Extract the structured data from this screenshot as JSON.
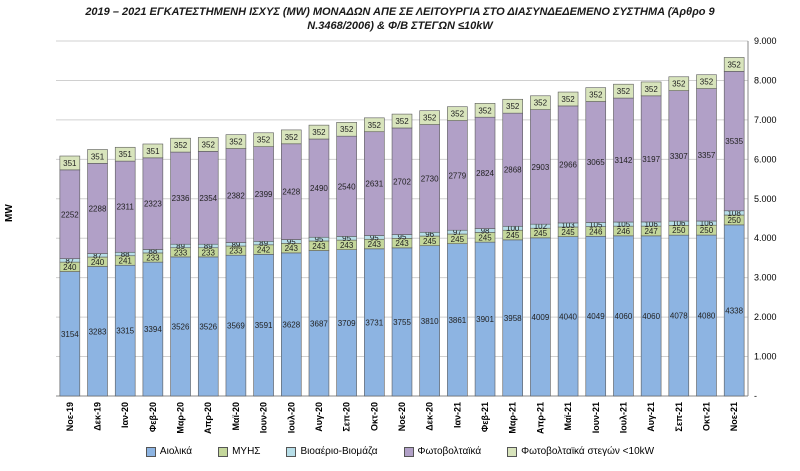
{
  "chart_data": {
    "type": "bar",
    "stacked": true,
    "title_line1": "2019 – 2021  ΕΓΚΑΤΕΣΤΗΜΕΝΗ  ΙΣΧΥΣ (MW)  ΜΟΝΑΔΩΝ ΑΠΕ  ΣΕ ΛΕΙΤΟΥΡΓΙΑ ΣΤΟ ΔΙΑΣΥΝΔΕΔΕΜΕΝΟ  ΣΥΣΤΗΜΑ  (Άρθρο 9",
    "title_line2": "Ν.3468/2006)  & Φ/Β ΣΤΕΓΩΝ ≤10kW",
    "ylabel": "MW",
    "ylim": [
      0,
      9000
    ],
    "yticks": [
      "-",
      "1.000",
      "2.000",
      "3.000",
      "4.000",
      "5.000",
      "6.000",
      "7.000",
      "8.000",
      "9.000"
    ],
    "grid": true,
    "legend_position": "bottom",
    "categories": [
      "Νοε-19",
      "Δεκ-19",
      "Ιαν-20",
      "Φεβ-20",
      "Μαρ-20",
      "Απρ-20",
      "Μαϊ-20",
      "Ιουν-20",
      "Ιουλ-20",
      "Αυγ-20",
      "Σεπ-20",
      "Οκτ-20",
      "Νοε-20",
      "Δεκ-20",
      "Ιαν-21",
      "Φεβ-21",
      "Μαρ-21",
      "Απρ-21",
      "Μαϊ-21",
      "Ιουν-21",
      "Ιουλ-21",
      "Αυγ-21",
      "Σεπ-21",
      "Οκτ-21",
      "Νοε-21"
    ],
    "series": [
      {
        "name": "Αιολικά",
        "color": "#8db4e2",
        "values": [
          3154,
          3283,
          3315,
          3394,
          3526,
          3526,
          3569,
          3591,
          3628,
          3687,
          3709,
          3731,
          3755,
          3810,
          3861,
          3901,
          3958,
          4009,
          4040,
          4049,
          4060,
          4060,
          4078,
          4080,
          4338
        ]
      },
      {
        "name": "ΜΥΗΣ",
        "color": "#c4d79b",
        "values": [
          240,
          240,
          241,
          233,
          233,
          233,
          233,
          242,
          243,
          243,
          243,
          243,
          243,
          245,
          245,
          245,
          245,
          245,
          245,
          246,
          246,
          247,
          250,
          250,
          250
        ]
      },
      {
        "name": "Βιοαέριο-Βιομάζα",
        "color": "#b7dee8",
        "values": [
          87,
          87,
          88,
          88,
          89,
          89,
          89,
          89,
          95,
          95,
          95,
          95,
          95,
          96,
          97,
          98,
          100,
          102,
          103,
          105,
          105,
          106,
          106,
          106,
          108
        ]
      },
      {
        "name": "Φωτοβολταϊκά",
        "color": "#b1a0c7",
        "values": [
          2252,
          2288,
          2311,
          2323,
          2336,
          2354,
          2382,
          2399,
          2428,
          2490,
          2540,
          2631,
          2702,
          2730,
          2779,
          2824,
          2868,
          2903,
          2966,
          3065,
          3142,
          3197,
          3307,
          3357,
          3535
        ]
      },
      {
        "name": "Φωτοβολταϊκά στεγών <10kW",
        "color": "#d8e4bc",
        "values": [
          351,
          351,
          351,
          351,
          352,
          352,
          352,
          352,
          352,
          352,
          352,
          352,
          352,
          352,
          352,
          352,
          352,
          352,
          352,
          352,
          352,
          352,
          352,
          352,
          352
        ]
      }
    ]
  }
}
